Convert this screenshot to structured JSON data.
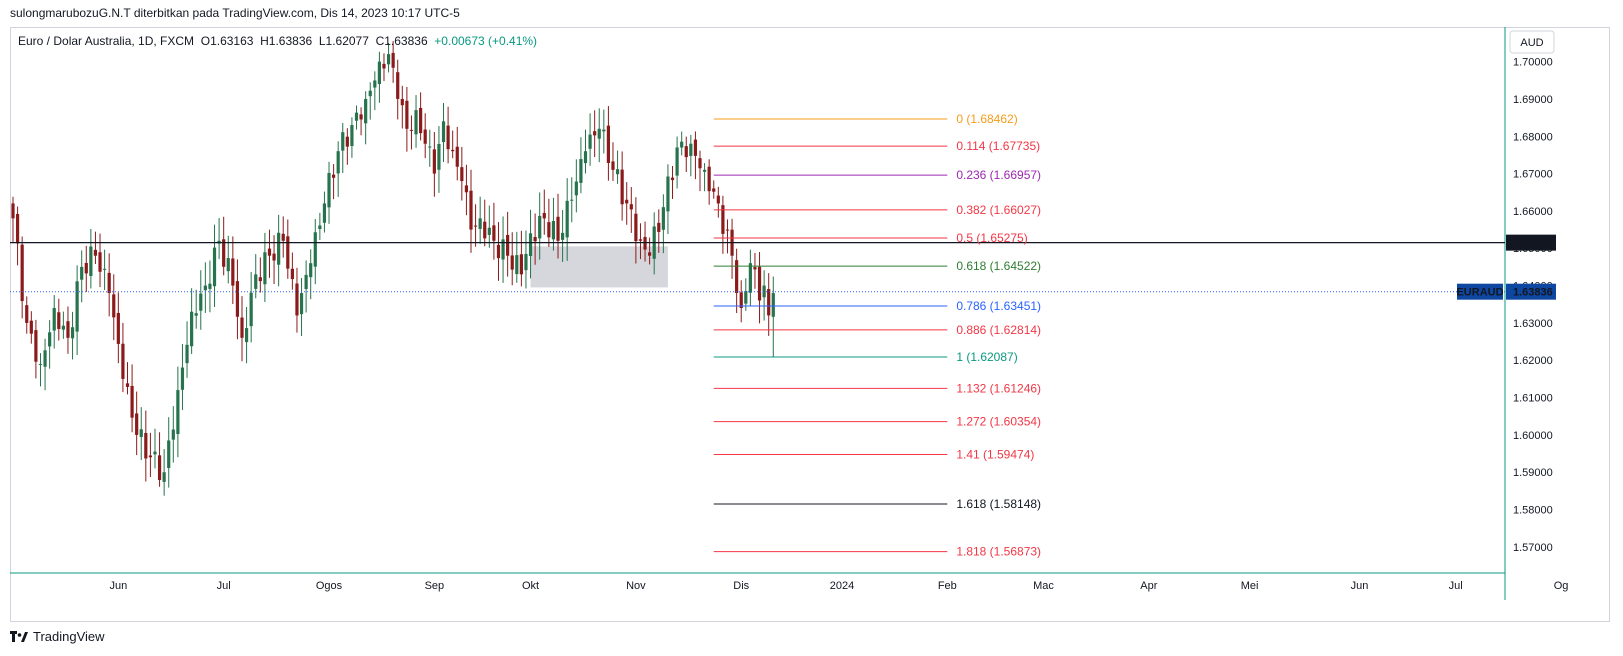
{
  "header": {
    "publisher_line": "sulongmarubozuG.N.T diterbitkan pada TradingView.com, Dis 14, 2023 10:17 UTC-5"
  },
  "legend": {
    "symbol": "Euro / Dolar Australia, 1D, FXCM",
    "open": "O1.63163",
    "high": "H1.63836",
    "low": "L1.62077",
    "close": "C1.63836",
    "change": "+0.00673 (+0.41%)"
  },
  "footer": {
    "brand": "TradingView"
  },
  "colors": {
    "up": "#26734d",
    "down": "#8b1a1a",
    "accent": "#2962ff",
    "teal": "#089981"
  },
  "chart_data": {
    "type": "candlestick",
    "symbol": "EURAUD",
    "currency_label": "AUD",
    "ylim": [
      1.563,
      1.709
    ],
    "y_ticks": [
      "1.70000",
      "1.69000",
      "1.68000",
      "1.67000",
      "1.66000",
      "1.65000",
      "1.64000",
      "1.63000",
      "1.62000",
      "1.61000",
      "1.60000",
      "1.59000",
      "1.58000",
      "1.57000"
    ],
    "y_tick_values": [
      1.7,
      1.69,
      1.68,
      1.67,
      1.66,
      1.65,
      1.64,
      1.63,
      1.62,
      1.61,
      1.6,
      1.59,
      1.58,
      1.57
    ],
    "x_labels": [
      {
        "label": "Jun",
        "index": 23
      },
      {
        "label": "Jul",
        "index": 46
      },
      {
        "label": "Ogos",
        "index": 69
      },
      {
        "label": "Sep",
        "index": 92
      },
      {
        "label": "Okt",
        "index": 113
      },
      {
        "label": "Nov",
        "index": 136
      },
      {
        "label": "Dis",
        "index": 159
      },
      {
        "label": "2024",
        "index": 181
      },
      {
        "label": "Feb",
        "index": 204
      },
      {
        "label": "Mac",
        "index": 225
      },
      {
        "label": "Apr",
        "index": 248
      },
      {
        "label": "Mei",
        "index": 270
      },
      {
        "label": "Jun",
        "index": 294
      },
      {
        "label": "Jul",
        "index": 315
      },
      {
        "label": "Og",
        "index": 338
      }
    ],
    "horizontal_line": {
      "price": 1.6515,
      "label": "1.65150"
    },
    "last_price": {
      "price": 1.63836,
      "symbol_tag": "EURAUD",
      "label": "1.63836"
    },
    "zone": {
      "start_index": 113,
      "end_index": 143,
      "top": 1.6505,
      "bottom": 1.6395
    },
    "fib_levels": [
      {
        "ratio": "0",
        "price": 1.68462,
        "label": "0 (1.68462)",
        "color": "#f59c1a"
      },
      {
        "ratio": "0.114",
        "price": 1.67735,
        "label": "0.114 (1.67735)",
        "color": "#f23645"
      },
      {
        "ratio": "0.236",
        "price": 1.66957,
        "label": "0.236 (1.66957)",
        "color": "#9c27b0"
      },
      {
        "ratio": "0.382",
        "price": 1.66027,
        "label": "0.382 (1.66027)",
        "color": "#f23645"
      },
      {
        "ratio": "0.5",
        "price": 1.65275,
        "label": "0.5 (1.65275)",
        "color": "#f23645"
      },
      {
        "ratio": "0.618",
        "price": 1.64522,
        "label": "0.618 (1.64522)",
        "color": "#2e7d32"
      },
      {
        "ratio": "0.786",
        "price": 1.63451,
        "label": "0.786 (1.63451)",
        "color": "#2962ff"
      },
      {
        "ratio": "0.886",
        "price": 1.62814,
        "label": "0.886 (1.62814)",
        "color": "#f23645"
      },
      {
        "ratio": "1",
        "price": 1.62087,
        "label": "1 (1.62087)",
        "color": "#089981"
      },
      {
        "ratio": "1.132",
        "price": 1.61246,
        "label": "1.132 (1.61246)",
        "color": "#f23645"
      },
      {
        "ratio": "1.272",
        "price": 1.60354,
        "label": "1.272 (1.60354)",
        "color": "#f23645"
      },
      {
        "ratio": "1.41",
        "price": 1.59474,
        "label": "1.41 (1.59474)",
        "color": "#f23645"
      },
      {
        "ratio": "1.618",
        "price": 1.58148,
        "label": "1.618 (1.58148)",
        "color": "#131722"
      },
      {
        "ratio": "1.818",
        "price": 1.56873,
        "label": "1.818 (1.56873)",
        "color": "#f23645"
      }
    ],
    "fib_start_index": 153,
    "fib_end_index": 204,
    "key_closes": [
      [
        0,
        1.658
      ],
      [
        3,
        1.63
      ],
      [
        6,
        1.619
      ],
      [
        9,
        1.634
      ],
      [
        12,
        1.626
      ],
      [
        15,
        1.645
      ],
      [
        18,
        1.648
      ],
      [
        21,
        1.638
      ],
      [
        24,
        1.615
      ],
      [
        27,
        1.6
      ],
      [
        30,
        1.594
      ],
      [
        33,
        1.59
      ],
      [
        36,
        1.612
      ],
      [
        39,
        1.633
      ],
      [
        42,
        1.64
      ],
      [
        45,
        1.652
      ],
      [
        48,
        1.64
      ],
      [
        50,
        1.626
      ],
      [
        53,
        1.643
      ],
      [
        56,
        1.648
      ],
      [
        59,
        1.652
      ],
      [
        62,
        1.632
      ],
      [
        65,
        1.646
      ],
      [
        68,
        1.662
      ],
      [
        71,
        1.676
      ],
      [
        74,
        1.683
      ],
      [
        77,
        1.69
      ],
      [
        80,
        1.7
      ],
      [
        82,
        1.702
      ],
      [
        84,
        1.69
      ],
      [
        86,
        1.682
      ],
      [
        88,
        1.687
      ],
      [
        90,
        1.678
      ],
      [
        92,
        1.67
      ],
      [
        94,
        1.684
      ],
      [
        96,
        1.676
      ],
      [
        98,
        1.668
      ],
      [
        100,
        1.655
      ],
      [
        102,
        1.658
      ],
      [
        105,
        1.652
      ],
      [
        108,
        1.648
      ],
      [
        111,
        1.643
      ],
      [
        113,
        1.654
      ],
      [
        116,
        1.658
      ],
      [
        119,
        1.652
      ],
      [
        122,
        1.663
      ],
      [
        125,
        1.676
      ],
      [
        128,
        1.682
      ],
      [
        131,
        1.671
      ],
      [
        134,
        1.662
      ],
      [
        137,
        1.652
      ],
      [
        139,
        1.648
      ],
      [
        142,
        1.661
      ],
      [
        145,
        1.677
      ],
      [
        148,
        1.678
      ],
      [
        151,
        1.671
      ],
      [
        154,
        1.662
      ],
      [
        157,
        1.648
      ],
      [
        159,
        1.634
      ],
      [
        161,
        1.646
      ],
      [
        163,
        1.636
      ],
      [
        164,
        1.64
      ],
      [
        165,
        1.632
      ],
      [
        166,
        1.638
      ]
    ]
  }
}
